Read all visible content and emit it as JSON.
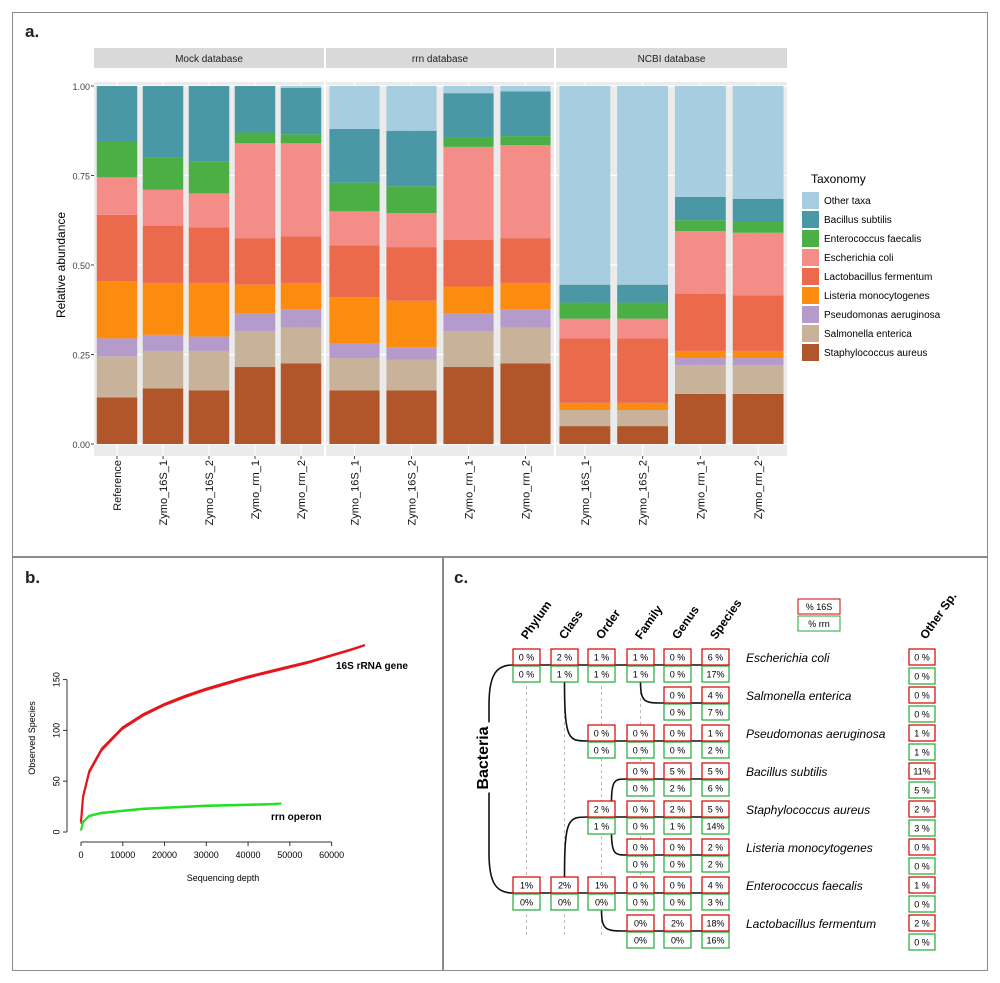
{
  "panels": {
    "a": "a.",
    "b": "b.",
    "c": "c."
  },
  "colors": {
    "Other taxa": "#a6cde0",
    "Bacillus subtilis": "#4a97a5",
    "Enterococcus faecalis": "#4caf45",
    "Escherichia coli": "#f48c88",
    "Lactobacillus fermentum": "#ec6a4c",
    "Listeria monocytogenes": "#fb8c0f",
    "Pseudomonas aeruginosa": "#b49bcc",
    "Salmonella enterica": "#c8b39a",
    "Staphylococcus aureus": "#b1552b"
  },
  "chart_data": [
    {
      "type": "bar",
      "stacked": true,
      "ylabel": "Relative abundance",
      "xlabel": "",
      "ylim": [
        0,
        1
      ],
      "yticks": [
        "0.00",
        "0.25",
        "0.50",
        "0.75",
        "1.00"
      ],
      "legend_title": "Taxonomy",
      "legend_position": "right",
      "legend": [
        "Other taxa",
        "Bacillus subtilis",
        "Enterococcus faecalis",
        "Escherichia coli",
        "Lactobacillus fermentum",
        "Listeria monocytogenes",
        "Pseudomonas aeruginosa",
        "Salmonella enterica",
        "Staphylococcus aureus"
      ],
      "stack_order": [
        "Staphylococcus aureus",
        "Salmonella enterica",
        "Pseudomonas aeruginosa",
        "Listeria monocytogenes",
        "Lactobacillus fermentum",
        "Escherichia coli",
        "Enterococcus faecalis",
        "Bacillus subtilis",
        "Other taxa"
      ],
      "facets": [
        {
          "name": "Mock database",
          "bars": [
            {
              "label": "Reference",
              "values": [
                0.13,
                0.115,
                0.05,
                0.16,
                0.185,
                0.105,
                0.1,
                0.155,
                0.0
              ]
            },
            {
              "label": "Zymo_16S_1",
              "values": [
                0.155,
                0.105,
                0.045,
                0.145,
                0.16,
                0.1,
                0.09,
                0.2,
                0.0
              ]
            },
            {
              "label": "Zymo_16S_2",
              "values": [
                0.15,
                0.11,
                0.04,
                0.15,
                0.155,
                0.095,
                0.09,
                0.21,
                0.0
              ]
            },
            {
              "label": "Zymo_rrn_1",
              "values": [
                0.215,
                0.1,
                0.05,
                0.08,
                0.13,
                0.265,
                0.03,
                0.13,
                0.0
              ]
            },
            {
              "label": "Zymo_rrn_2",
              "values": [
                0.225,
                0.1,
                0.05,
                0.075,
                0.13,
                0.26,
                0.025,
                0.13,
                0.005
              ]
            }
          ]
        },
        {
          "name": "rrn database",
          "bars": [
            {
              "label": "Zymo_16S_1",
              "values": [
                0.15,
                0.09,
                0.04,
                0.13,
                0.145,
                0.095,
                0.08,
                0.15,
                0.12
              ]
            },
            {
              "label": "Zymo_16S_2",
              "values": [
                0.15,
                0.085,
                0.035,
                0.13,
                0.15,
                0.095,
                0.075,
                0.155,
                0.125
              ]
            },
            {
              "label": "Zymo_rrn_1",
              "values": [
                0.215,
                0.1,
                0.05,
                0.075,
                0.13,
                0.26,
                0.025,
                0.125,
                0.02
              ]
            },
            {
              "label": "Zymo_rrn_2",
              "values": [
                0.225,
                0.1,
                0.05,
                0.075,
                0.125,
                0.26,
                0.025,
                0.125,
                0.015
              ]
            }
          ]
        },
        {
          "name": "NCBI database",
          "bars": [
            {
              "label": "Zymo_16S_1",
              "values": [
                0.05,
                0.045,
                0.0,
                0.02,
                0.18,
                0.055,
                0.045,
                0.05,
                0.555
              ]
            },
            {
              "label": "Zymo_16S_2",
              "values": [
                0.05,
                0.045,
                0.0,
                0.02,
                0.18,
                0.055,
                0.045,
                0.05,
                0.555
              ]
            },
            {
              "label": "Zymo_rrn_1",
              "values": [
                0.14,
                0.08,
                0.02,
                0.02,
                0.16,
                0.175,
                0.03,
                0.065,
                0.31
              ]
            },
            {
              "label": "Zymo_rrn_2",
              "values": [
                0.14,
                0.08,
                0.02,
                0.02,
                0.155,
                0.175,
                0.03,
                0.065,
                0.315
              ]
            }
          ]
        }
      ]
    },
    {
      "type": "line",
      "xlabel": "Sequencing depth",
      "ylabel": "Observed Species",
      "xlim": [
        0,
        68000
      ],
      "ylim": [
        0,
        185
      ],
      "xticks": [
        "0",
        "10000",
        "20000",
        "30000",
        "40000",
        "50000",
        "60000"
      ],
      "yticks": [
        "0",
        "50",
        "100",
        "150"
      ],
      "series": [
        {
          "name": "16S rRNA gene",
          "color": "#e3171b",
          "x": [
            0,
            500,
            2000,
            5000,
            10000,
            15000,
            20000,
            25000,
            30000,
            35000,
            40000,
            45000,
            50000,
            55000,
            60000,
            65000,
            68000
          ],
          "y": [
            10,
            35,
            60,
            82,
            103,
            116,
            126,
            134,
            141,
            147,
            153,
            158,
            163,
            168,
            174,
            180,
            184
          ]
        },
        {
          "name": "rrn operon",
          "color": "#22e022",
          "x": [
            0,
            500,
            2000,
            5000,
            10000,
            15000,
            20000,
            25000,
            30000,
            35000,
            40000,
            45000,
            48000
          ],
          "y": [
            2,
            10,
            16,
            19,
            21,
            23,
            24,
            25,
            26,
            26.5,
            27,
            27.5,
            28
          ]
        }
      ]
    }
  ],
  "tree": {
    "root": "Bacteria",
    "ranks": [
      "Phylum",
      "Class",
      "Order",
      "Family",
      "Genus",
      "Species"
    ],
    "other_rank": "Other Sp.",
    "key": {
      "top": "% 16S",
      "bottom": "% rrn"
    },
    "species": [
      {
        "name": "Escherichia coli",
        "other": [
          "0 %",
          "0 %"
        ]
      },
      {
        "name": "Salmonella enterica",
        "other": [
          "0 %",
          "0 %"
        ]
      },
      {
        "name": "Pseudomonas aeruginosa",
        "other": [
          "1 %",
          "1 %"
        ]
      },
      {
        "name": "Bacillus subtilis",
        "other": [
          "11%",
          "5 %"
        ]
      },
      {
        "name": "Staphylococcus aureus",
        "other": [
          "2 %",
          "3 %"
        ]
      },
      {
        "name": "Listeria monocytogenes",
        "other": [
          "0 %",
          "0 %"
        ]
      },
      {
        "name": "Enterococcus faecalis",
        "other": [
          "1 %",
          "0 %"
        ]
      },
      {
        "name": "Lactobacillus fermentum",
        "other": [
          "2 %",
          "0 %"
        ]
      }
    ],
    "boxes": [
      {
        "col": 0,
        "row": 0,
        "t": "0 %",
        "b": "0 %"
      },
      {
        "col": 1,
        "row": 0,
        "t": "2 %",
        "b": "1 %"
      },
      {
        "col": 2,
        "row": 0,
        "t": "1 %",
        "b": "1 %"
      },
      {
        "col": 3,
        "row": 0,
        "t": "1 %",
        "b": "1 %"
      },
      {
        "col": 4,
        "row": 0,
        "t": "0 %",
        "b": "0 %"
      },
      {
        "col": 5,
        "row": 0,
        "t": "6 %",
        "b": "17%"
      },
      {
        "col": 4,
        "row": 1,
        "t": "0 %",
        "b": "0 %"
      },
      {
        "col": 5,
        "row": 1,
        "t": "4 %",
        "b": "7 %"
      },
      {
        "col": 2,
        "row": 2,
        "t": "0 %",
        "b": "0 %"
      },
      {
        "col": 3,
        "row": 2,
        "t": "0 %",
        "b": "0 %"
      },
      {
        "col": 4,
        "row": 2,
        "t": "0 %",
        "b": "0 %"
      },
      {
        "col": 5,
        "row": 2,
        "t": "1 %",
        "b": "2 %"
      },
      {
        "col": 3,
        "row": 3,
        "t": "0 %",
        "b": "0 %"
      },
      {
        "col": 4,
        "row": 3,
        "t": "5 %",
        "b": "2 %"
      },
      {
        "col": 5,
        "row": 3,
        "t": "5 %",
        "b": "6 %"
      },
      {
        "col": 2,
        "row": 4,
        "t": "2 %",
        "b": "1 %"
      },
      {
        "col": 3,
        "row": 4,
        "t": "0 %",
        "b": "0 %"
      },
      {
        "col": 4,
        "row": 4,
        "t": "2 %",
        "b": "1 %"
      },
      {
        "col": 5,
        "row": 4,
        "t": "5 %",
        "b": "14%"
      },
      {
        "col": 3,
        "row": 5,
        "t": "0 %",
        "b": "0 %"
      },
      {
        "col": 4,
        "row": 5,
        "t": "0 %",
        "b": "0 %"
      },
      {
        "col": 5,
        "row": 5,
        "t": "2 %",
        "b": "2 %"
      },
      {
        "col": 0,
        "row": 6,
        "t": "1%",
        "b": "0%"
      },
      {
        "col": 1,
        "row": 6,
        "t": "2%",
        "b": "0%"
      },
      {
        "col": 2,
        "row": 6,
        "t": "1%",
        "b": "0%"
      },
      {
        "col": 3,
        "row": 6,
        "t": "0 %",
        "b": "0 %"
      },
      {
        "col": 4,
        "row": 6,
        "t": "0 %",
        "b": "0 %"
      },
      {
        "col": 5,
        "row": 6,
        "t": "4 %",
        "b": "3 %"
      },
      {
        "col": 3,
        "row": 7,
        "t": "0%",
        "b": "0%"
      },
      {
        "col": 4,
        "row": 7,
        "t": "2%",
        "b": "0%"
      },
      {
        "col": 5,
        "row": 7,
        "t": "18%",
        "b": "16%"
      }
    ]
  }
}
